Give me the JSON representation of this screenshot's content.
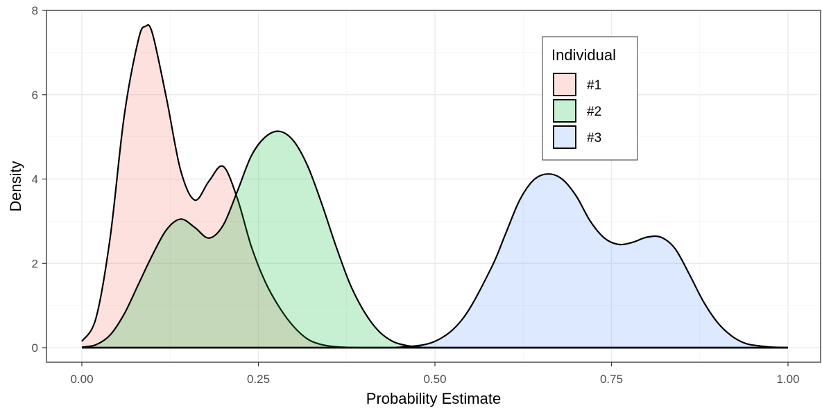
{
  "chart_data": {
    "type": "area",
    "subtype": "density",
    "title": "",
    "xlabel": "Probability Estimate",
    "ylabel": "Density",
    "xlim": [
      0,
      1
    ],
    "ylim": [
      0,
      8
    ],
    "x_ticks": [
      0,
      0.25,
      0.5,
      0.75,
      1.0
    ],
    "x_tick_labels": [
      "0.00",
      "0.25",
      "0.50",
      "0.75",
      "1.00"
    ],
    "y_ticks": [
      0,
      2,
      4,
      6,
      8
    ],
    "y_tick_labels": [
      "0",
      "2",
      "4",
      "6",
      "8"
    ],
    "grid": true,
    "legend": {
      "title": "Individual",
      "position": "top-right"
    },
    "series": [
      {
        "name": "#1",
        "color": "#f8766d",
        "fill": "#fde0df",
        "x": [
          0.0,
          0.02,
          0.04,
          0.06,
          0.08,
          0.09,
          0.1,
          0.12,
          0.14,
          0.16,
          0.18,
          0.2,
          0.22,
          0.24,
          0.26,
          0.28,
          0.3,
          0.32,
          0.34,
          0.36,
          0.38,
          0.4,
          0.45,
          1.0
        ],
        "y": [
          0.15,
          0.7,
          2.6,
          5.5,
          7.3,
          7.62,
          7.45,
          5.9,
          4.2,
          3.5,
          3.95,
          4.3,
          3.55,
          2.4,
          1.55,
          0.95,
          0.5,
          0.2,
          0.07,
          0.02,
          0.005,
          0.0,
          0.0,
          0.0
        ]
      },
      {
        "name": "#2",
        "color": "#00ba38",
        "fill": "#c9efd3",
        "x": [
          0.0,
          0.02,
          0.04,
          0.06,
          0.08,
          0.1,
          0.12,
          0.14,
          0.16,
          0.18,
          0.2,
          0.22,
          0.24,
          0.26,
          0.28,
          0.3,
          0.32,
          0.34,
          0.36,
          0.38,
          0.4,
          0.42,
          0.44,
          0.46,
          0.48,
          0.5,
          1.0
        ],
        "y": [
          0.01,
          0.07,
          0.3,
          0.8,
          1.5,
          2.2,
          2.8,
          3.05,
          2.85,
          2.6,
          2.9,
          3.7,
          4.55,
          5.0,
          5.13,
          4.9,
          4.3,
          3.4,
          2.4,
          1.5,
          0.85,
          0.4,
          0.15,
          0.05,
          0.01,
          0.0,
          0.0
        ]
      },
      {
        "name": "#3",
        "color": "#619cff",
        "fill": "#dde8fb",
        "x": [
          0.0,
          0.4,
          0.45,
          0.5,
          0.54,
          0.58,
          0.6,
          0.62,
          0.64,
          0.66,
          0.68,
          0.7,
          0.72,
          0.74,
          0.76,
          0.78,
          0.8,
          0.82,
          0.84,
          0.86,
          0.88,
          0.9,
          0.92,
          0.94,
          0.96,
          0.98,
          1.0
        ],
        "y": [
          0.0,
          0.0,
          0.01,
          0.15,
          0.7,
          1.9,
          2.7,
          3.5,
          3.98,
          4.12,
          4.0,
          3.6,
          3.0,
          2.6,
          2.45,
          2.5,
          2.62,
          2.62,
          2.35,
          1.75,
          1.1,
          0.6,
          0.28,
          0.1,
          0.04,
          0.01,
          0.0
        ]
      }
    ]
  }
}
